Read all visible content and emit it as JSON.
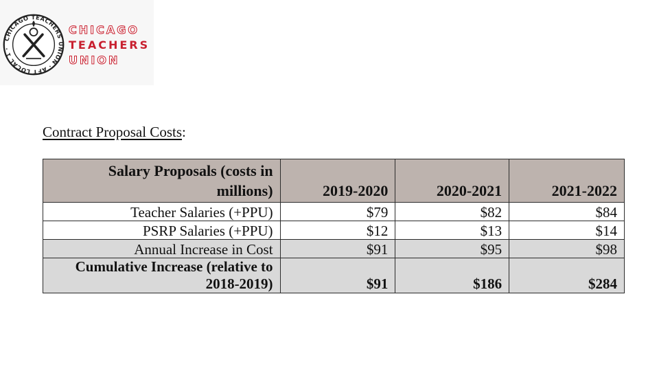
{
  "logo": {
    "seal_text": "CHICAGO TEACHERS UNION · AFT LOCAL 1 · AFL-CIO",
    "line1": "CHICAGO",
    "line2": "TEACHERS",
    "line3": "UNION",
    "brand_color": "#c8202f"
  },
  "heading": {
    "underlined": "Contract Proposal Costs",
    "suffix": ":"
  },
  "table": {
    "header": {
      "label_line1": "Salary Proposals (costs in",
      "label_line2": "millions)",
      "years": [
        "2019-2020",
        "2020-2021",
        "2021-2022"
      ]
    },
    "rows": [
      {
        "label": "Teacher Salaries (+PPU)",
        "values": [
          "$79",
          "$82",
          "$84"
        ]
      },
      {
        "label": "PSRP Salaries (+PPU)",
        "values": [
          "$12",
          "$13",
          "$14"
        ]
      },
      {
        "label": "Annual Increase in Cost",
        "values": [
          "$91",
          "$95",
          "$98"
        ]
      }
    ],
    "cumulative": {
      "label_line1": "Cumulative Increase (relative to",
      "label_line2": "2018-2019)",
      "values": [
        "$91",
        "$186",
        "$284"
      ]
    },
    "header_color": "#bdb3ae",
    "shade_color": "#d9d9d9"
  }
}
